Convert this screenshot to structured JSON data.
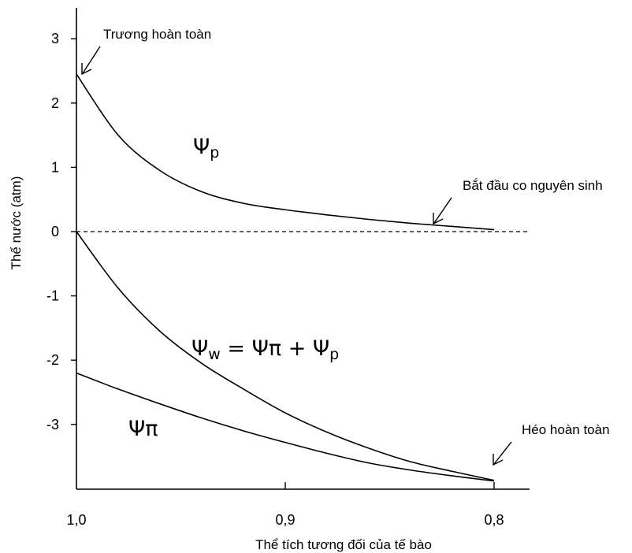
{
  "chart_data": {
    "type": "line",
    "xlabel": "Thể tích tương đối của tế bào",
    "ylabel": "Thế nước (atm)",
    "xlim": [
      1.0,
      0.79
    ],
    "ylim": [
      -3.9,
      3.5
    ],
    "x_ticks": [
      1.0,
      0.9,
      0.8
    ],
    "x_tick_labels": [
      "1,0",
      "0,9",
      "0,8"
    ],
    "y_ticks": [
      3,
      2,
      1,
      0,
      -1,
      -2,
      -3
    ],
    "y_tick_labels": [
      "3",
      "2",
      "1",
      "0",
      "-1",
      "-2",
      "-3"
    ],
    "zero_line": "dashed",
    "series": [
      {
        "name": "Ψp",
        "x": [
          1.0,
          0.98,
          0.96,
          0.94,
          0.92,
          0.9,
          0.88,
          0.86,
          0.84,
          0.82,
          0.8
        ],
        "y": [
          2.45,
          1.5,
          0.95,
          0.62,
          0.44,
          0.34,
          0.26,
          0.19,
          0.13,
          0.08,
          0.03
        ]
      },
      {
        "name": "Ψw = Ψπ + Ψp",
        "x": [
          1.0,
          0.98,
          0.96,
          0.94,
          0.92,
          0.9,
          0.88,
          0.86,
          0.84,
          0.82,
          0.8
        ],
        "y": [
          0.0,
          -0.88,
          -1.55,
          -2.05,
          -2.45,
          -2.82,
          -3.12,
          -3.37,
          -3.58,
          -3.73,
          -3.87
        ]
      },
      {
        "name": "Ψπ",
        "x": [
          1.0,
          0.98,
          0.96,
          0.94,
          0.92,
          0.9,
          0.88,
          0.86,
          0.84,
          0.82,
          0.8
        ],
        "y": [
          -2.2,
          -2.45,
          -2.68,
          -2.9,
          -3.1,
          -3.28,
          -3.45,
          -3.6,
          -3.71,
          -3.8,
          -3.88
        ]
      }
    ],
    "series_labels": [
      {
        "main": "Ψ",
        "sub": "p"
      },
      {
        "main": "Ψ",
        "sub": "w",
        "rest": " = Ψπ + Ψ",
        "sub2": "p"
      },
      {
        "main": "Ψπ"
      }
    ],
    "annotations": [
      {
        "text": "Trương hoàn toàn",
        "x": 1.0,
        "y": 2.45
      },
      {
        "text": "Bắt đầu co nguyên sinh",
        "x": 0.83,
        "y": 0.1
      },
      {
        "text": "Héo hoàn toàn",
        "x": 0.8,
        "y": -3.87
      }
    ]
  }
}
